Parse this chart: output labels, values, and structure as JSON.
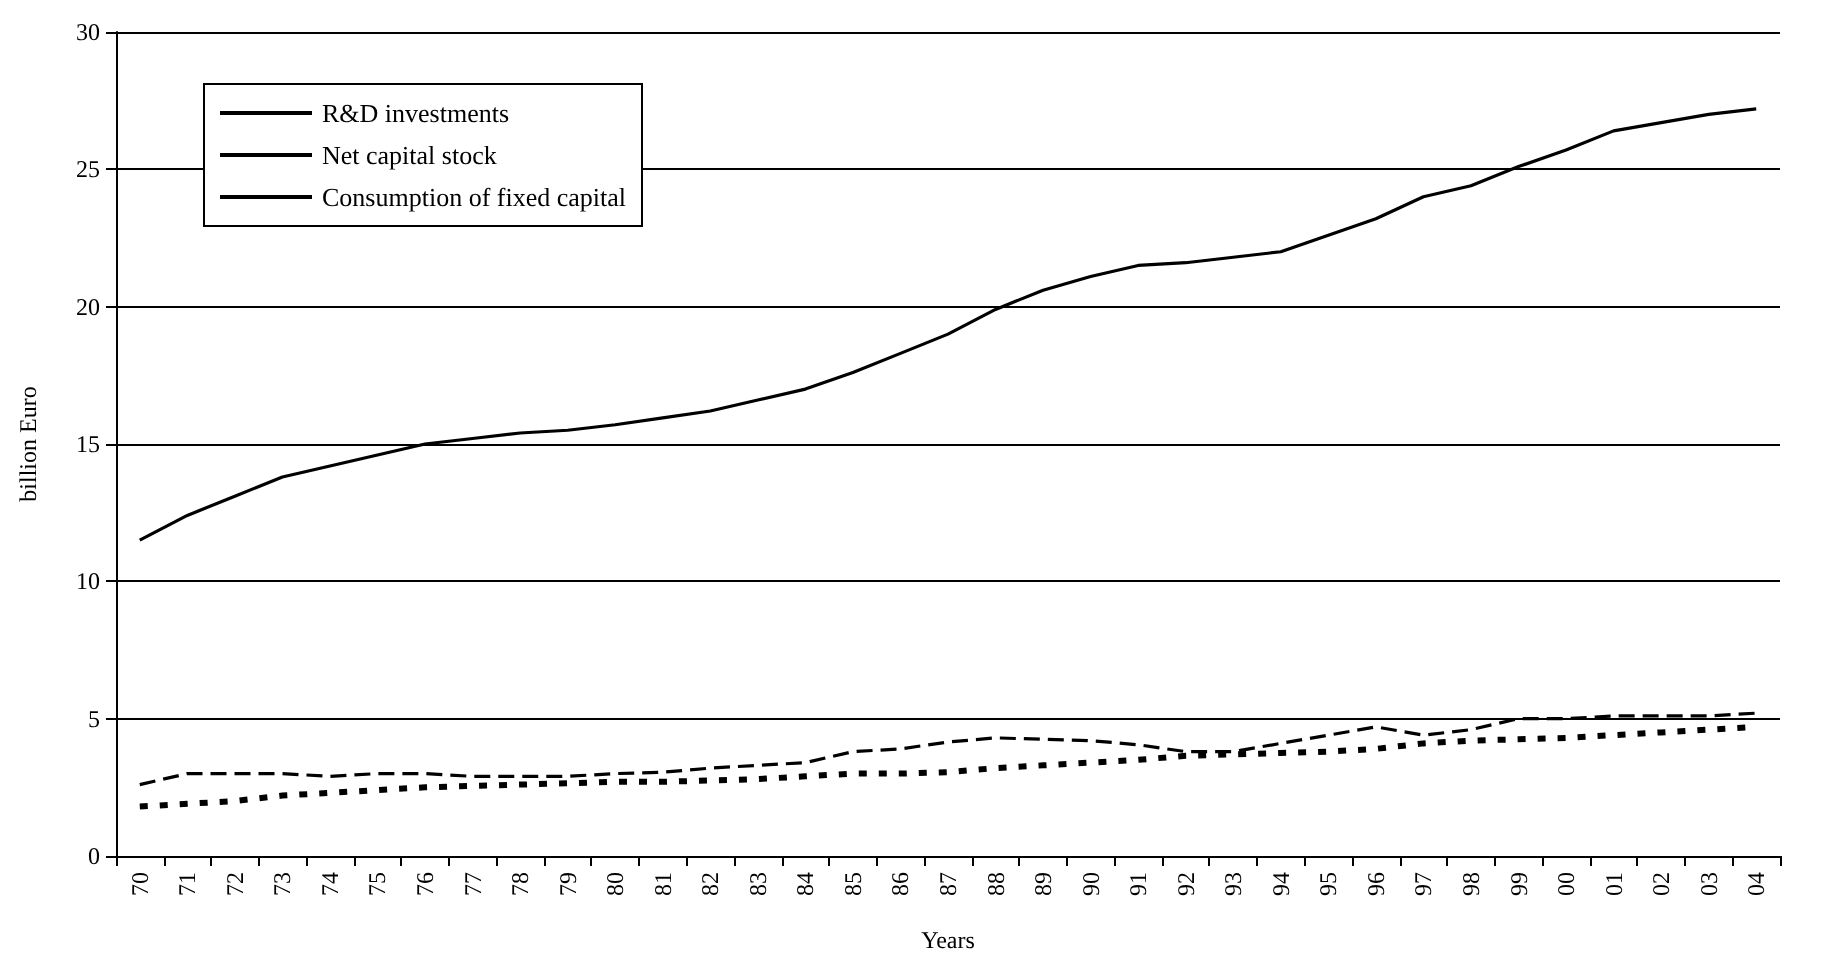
{
  "chart_data": {
    "type": "line",
    "xlabel": "Years",
    "ylabel": "billion Euro",
    "categories": [
      "70",
      "71",
      "72",
      "73",
      "74",
      "75",
      "76",
      "77",
      "78",
      "79",
      "80",
      "81",
      "82",
      "83",
      "84",
      "85",
      "86",
      "87",
      "88",
      "89",
      "90",
      "91",
      "92",
      "93",
      "94",
      "95",
      "96",
      "97",
      "98",
      "99",
      "00",
      "01",
      "02",
      "03",
      "04"
    ],
    "series": [
      {
        "name": "R&D investments",
        "color": "#000000",
        "line_style": "dashed",
        "values": [
          2.6,
          3.0,
          3.0,
          3.0,
          2.9,
          3.0,
          3.0,
          2.9,
          2.9,
          2.9,
          3.0,
          3.05,
          3.2,
          3.3,
          3.4,
          3.8,
          3.9,
          4.15,
          4.3,
          4.25,
          4.2,
          4.05,
          3.8,
          3.8,
          4.1,
          4.4,
          4.7,
          4.4,
          4.6,
          5.0,
          5.0,
          5.1,
          5.1,
          5.1,
          5.2
        ]
      },
      {
        "name": "Net capital stock",
        "color": "#000000",
        "line_style": "solid",
        "values": [
          11.5,
          12.4,
          13.1,
          13.8,
          14.2,
          14.6,
          15.0,
          15.2,
          15.4,
          15.5,
          15.7,
          15.95,
          16.2,
          16.6,
          17.0,
          17.6,
          18.3,
          19.0,
          19.9,
          20.6,
          21.1,
          21.5,
          21.6,
          21.8,
          22.0,
          22.6,
          23.2,
          24.0,
          24.4,
          25.1,
          25.7,
          26.4,
          26.7,
          27.0,
          27.2
        ]
      },
      {
        "name": "Consumption of fixed capital",
        "color": "#000000",
        "line_style": "dotted",
        "values": [
          1.8,
          1.9,
          2.0,
          2.2,
          2.3,
          2.4,
          2.5,
          2.55,
          2.6,
          2.65,
          2.7,
          2.7,
          2.75,
          2.8,
          2.9,
          3.0,
          3.0,
          3.05,
          3.2,
          3.3,
          3.4,
          3.5,
          3.65,
          3.7,
          3.75,
          3.8,
          3.9,
          4.1,
          4.2,
          4.25,
          4.3,
          4.4,
          4.5,
          4.6,
          4.7
        ]
      }
    ],
    "ylim": [
      0,
      30
    ],
    "yticks": [
      0,
      5,
      10,
      15,
      20,
      25,
      30
    ],
    "grid": "y",
    "legend": "top left",
    "marker": "none"
  }
}
